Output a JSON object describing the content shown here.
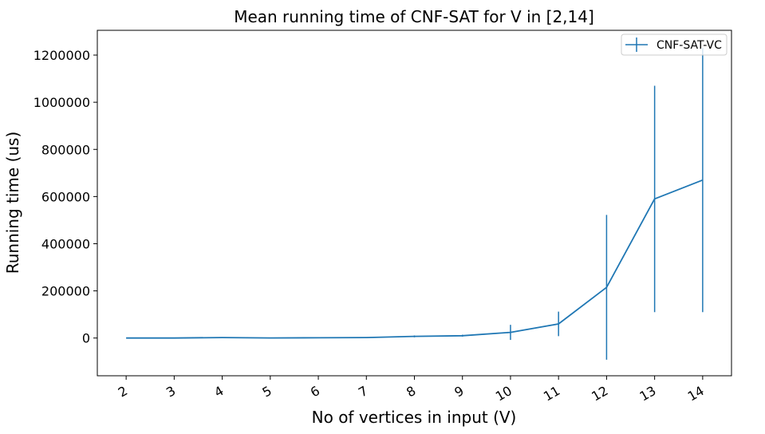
{
  "chart_data": {
    "type": "line",
    "title": "Mean running time of CNF-SAT for V in [2,14]",
    "xlabel": "No of vertices in input (V)",
    "ylabel": "Running time (us)",
    "x": [
      2,
      3,
      4,
      5,
      6,
      7,
      8,
      9,
      10,
      11,
      12,
      13,
      14
    ],
    "xtick_labels": [
      "2",
      "3",
      "4",
      "5",
      "6",
      "7",
      "8",
      "9",
      "10",
      "11",
      "12",
      "13",
      "14"
    ],
    "yticks": [
      0,
      200000,
      400000,
      600000,
      800000,
      1000000,
      1200000
    ],
    "ytick_labels": [
      "0",
      "200000",
      "400000",
      "600000",
      "800000",
      "1000000",
      "1200000"
    ],
    "xlim": [
      1.4,
      14.6
    ],
    "ylim": [
      -160000,
      1305000
    ],
    "grid": false,
    "legend_position": "top-right",
    "series": [
      {
        "name": "CNF-SAT-VC",
        "color": "#1f77b4",
        "values": [
          0,
          200,
          2000,
          500,
          1000,
          2000,
          7000,
          10000,
          24000,
          60000,
          215000,
          590000,
          670000
        ],
        "errors": [
          0,
          0,
          0,
          0,
          0,
          0,
          4000,
          4000,
          32000,
          52000,
          307000,
          480000,
          560000
        ]
      }
    ]
  }
}
